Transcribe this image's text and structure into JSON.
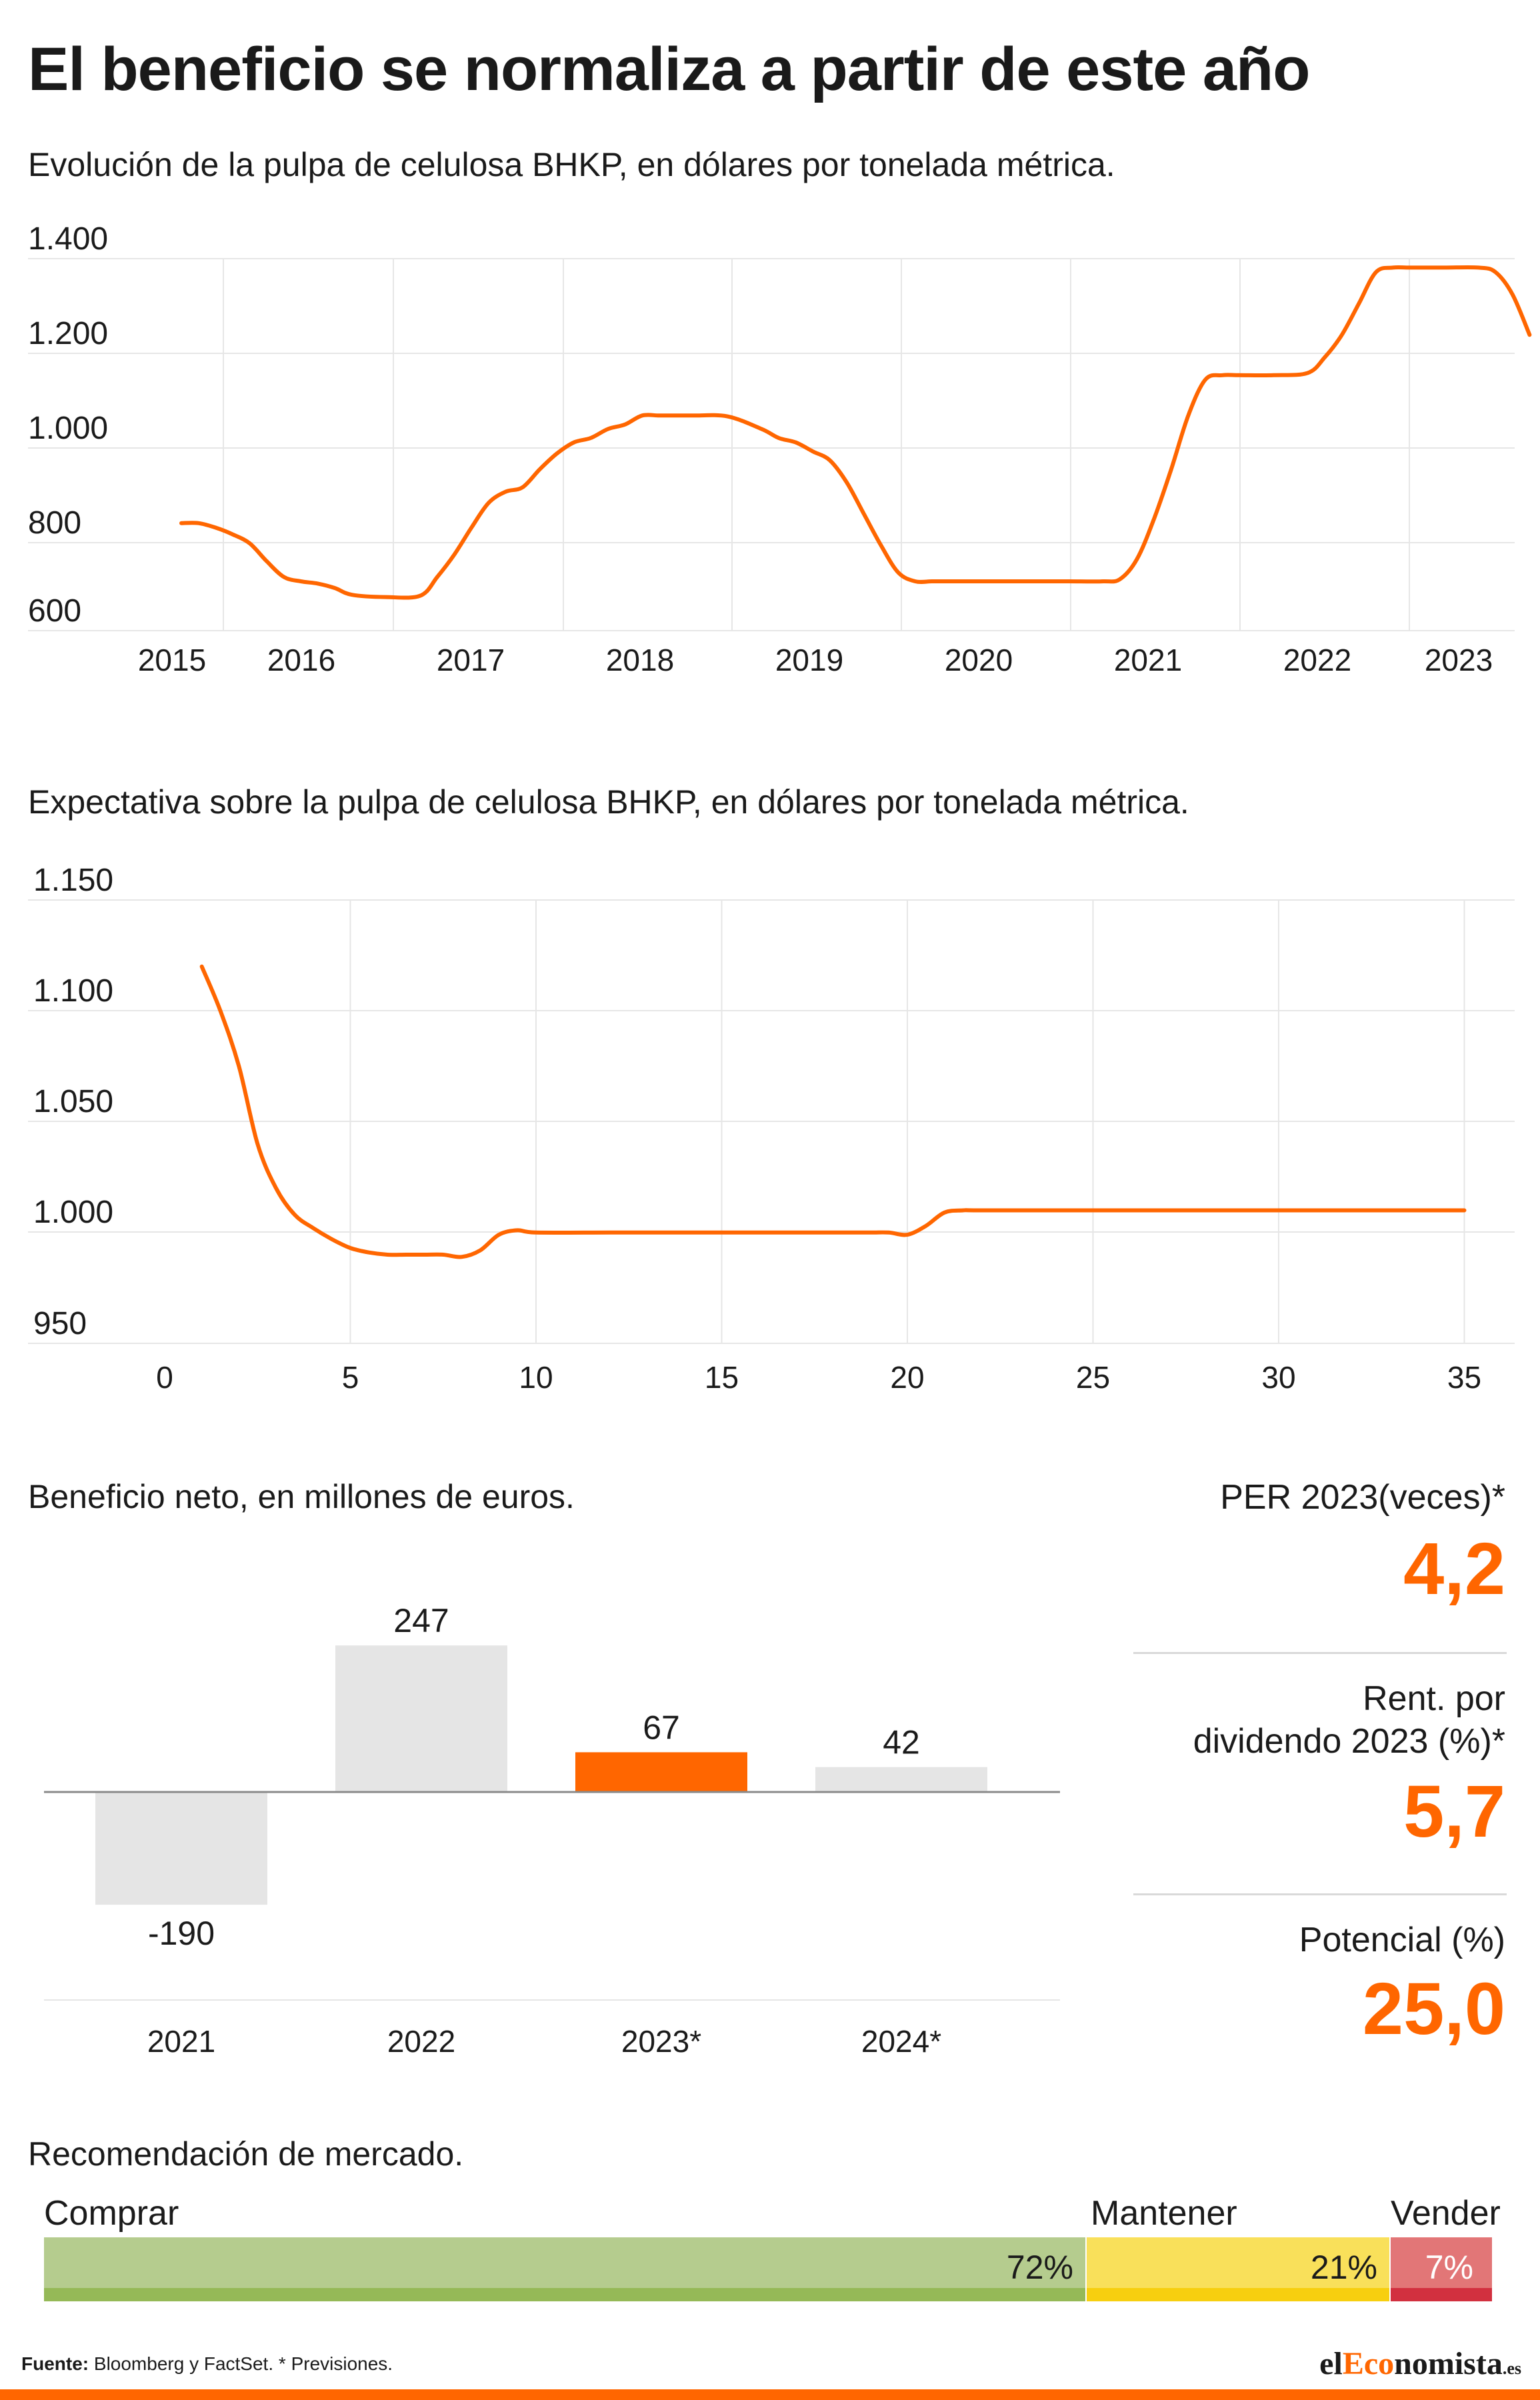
{
  "title": "El beneficio se normaliza a partir de este año",
  "colors": {
    "accent": "#ff6600",
    "bar_neutral": "#e5e5e5",
    "grid": "#e6e6e6",
    "buy": "#b5cc8e",
    "buy_bar": "#95b957",
    "hold": "#f9e05a",
    "hold_bar": "#f7cf0f",
    "sell": "#e27677",
    "sell_bar": "#d2303f"
  },
  "chart_data": [
    {
      "type": "line",
      "subtitle": "Evolución de la pulpa de celulosa BHKP, en dólares por tonelada métrica.",
      "ylim": [
        570,
        1400
      ],
      "y_ticks": [
        1400,
        1200,
        1000,
        800,
        600
      ],
      "y_tick_labels": [
        "1.400",
        "1.200",
        "1.000",
        "800",
        "600"
      ],
      "x_tick_labels": [
        "2015",
        "2016",
        "2017",
        "2018",
        "2019",
        "2020",
        "2021",
        "2022",
        "2023"
      ],
      "grid": true,
      "x": [
        2015.0,
        2015.1,
        2015.2,
        2015.3,
        2015.4,
        2015.5,
        2015.6,
        2015.7,
        2015.8,
        2015.9,
        2016.0,
        2016.2,
        2016.4,
        2016.5,
        2016.6,
        2016.7,
        2016.8,
        2016.9,
        2017.0,
        2017.1,
        2017.2,
        2017.3,
        2017.4,
        2017.5,
        2017.6,
        2017.7,
        2017.8,
        2017.9,
        2018.0,
        2018.2,
        2018.4,
        2018.5,
        2018.6,
        2018.7,
        2018.8,
        2018.9,
        2019.0,
        2019.1,
        2019.2,
        2019.3,
        2019.4,
        2019.5,
        2019.6,
        2019.7,
        2019.8,
        2020.0,
        2020.2,
        2020.4,
        2020.5,
        2020.6,
        2020.7,
        2020.8,
        2020.9,
        2021.0,
        2021.1,
        2021.2,
        2021.4,
        2021.6,
        2021.7,
        2021.8,
        2021.9,
        2022.0,
        2022.1,
        2022.2,
        2022.4,
        2022.6,
        2022.7,
        2022.8,
        2022.9
      ],
      "y": [
        810,
        810,
        800,
        785,
        765,
        725,
        690,
        680,
        675,
        665,
        650,
        645,
        648,
        690,
        740,
        800,
        855,
        880,
        890,
        930,
        965,
        990,
        1000,
        1020,
        1030,
        1050,
        1050,
        1050,
        1050,
        1048,
        1020,
        1000,
        990,
        970,
        950,
        900,
        830,
        760,
        700,
        680,
        680,
        680,
        680,
        680,
        680,
        680,
        680,
        680,
        685,
        730,
        820,
        930,
        1050,
        1130,
        1140,
        1140,
        1140,
        1145,
        1180,
        1230,
        1300,
        1370,
        1380,
        1380,
        1380,
        1380,
        1370,
        1320,
        1230
      ]
    },
    {
      "type": "line",
      "subtitle": "Expectativa sobre la pulpa de celulosa BHKP, en dólares por tonelada métrica.",
      "ylim": [
        950,
        1150
      ],
      "y_ticks": [
        1150,
        1100,
        1050,
        1000,
        950
      ],
      "y_tick_labels": [
        "1.150",
        "1.100",
        "1.050",
        "1.000",
        "950"
      ],
      "x_ticks": [
        0,
        5,
        10,
        15,
        20,
        25,
        30,
        35
      ],
      "x_tick_labels": [
        "0",
        "5",
        "10",
        "15",
        "20",
        "25",
        "30",
        "35"
      ],
      "grid": true,
      "x": [
        1,
        1.5,
        2,
        2.5,
        3,
        3.5,
        4,
        4.5,
        5,
        5.5,
        6,
        6.5,
        7,
        7.5,
        8,
        8.5,
        9,
        9.5,
        10,
        12,
        14,
        16,
        18,
        19,
        19.5,
        20,
        20.5,
        21,
        21.5,
        22,
        25,
        30,
        35
      ],
      "y": [
        1120,
        1100,
        1075,
        1040,
        1020,
        1008,
        1002,
        997,
        993,
        991,
        990,
        990,
        990,
        990,
        989,
        992,
        999,
        1001,
        1000,
        1000,
        1000,
        1000,
        1000,
        1000,
        1000,
        999,
        1003,
        1009,
        1010,
        1010,
        1010,
        1010,
        1010
      ]
    },
    {
      "type": "bar",
      "subtitle": "Beneficio neto, en millones de euros.",
      "categories": [
        "2021",
        "2022",
        "2023*",
        "2024*"
      ],
      "values": [
        -190,
        247,
        67,
        42
      ],
      "value_labels": [
        "-190",
        "247",
        "67",
        "42"
      ],
      "highlight_index": 2
    },
    {
      "type": "bar",
      "subtitle": "Recomendación de mercado.",
      "categories": [
        "Comprar",
        "Mantener",
        "Vender"
      ],
      "values": [
        72,
        21,
        7
      ],
      "value_labels": [
        "72%",
        "21%",
        "7%"
      ]
    }
  ],
  "kpis": [
    {
      "label": "PER 2023(veces)*",
      "value": "4,2"
    },
    {
      "label_line1": "Rent. por",
      "label_line2": "dividendo 2023 (%)*",
      "value": "5,7"
    },
    {
      "label": "Potencial (%)",
      "value": "25,0"
    }
  ],
  "source": {
    "prefix": "Fuente:",
    "text": " Bloomberg y FactSet. * Previsiones."
  },
  "logo": {
    "part1": "el",
    "part2": "Eco",
    "part3": "nomista",
    "part4": ".es"
  }
}
